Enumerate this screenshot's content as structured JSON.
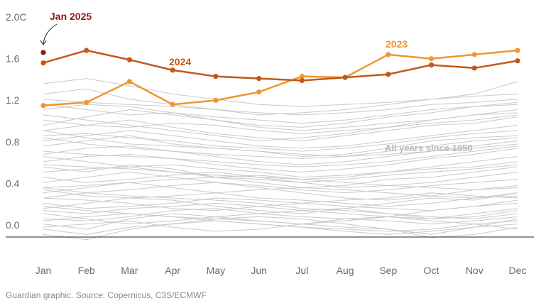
{
  "chart_data": {
    "type": "line",
    "categories": [
      "Jan",
      "Feb",
      "Mar",
      "Apr",
      "May",
      "Jun",
      "Jul",
      "Aug",
      "Sep",
      "Oct",
      "Nov",
      "Dec"
    ],
    "y_ticks": [
      "2.0C",
      "1.6",
      "1.2",
      "0.8",
      "0.4",
      "0.0"
    ],
    "y_tick_values": [
      2.0,
      1.6,
      1.2,
      0.8,
      0.4,
      0.0
    ],
    "ylim": [
      -0.15,
      2.05
    ],
    "grid": false,
    "highlight_series": [
      {
        "name": "2024",
        "color": "#c2571a",
        "values": [
          1.6,
          1.72,
          1.63,
          1.53,
          1.47,
          1.45,
          1.43,
          1.46,
          1.49,
          1.58,
          1.55,
          1.62
        ]
      },
      {
        "name": "2023",
        "color": "#f0962e",
        "values": [
          1.19,
          1.22,
          1.42,
          1.2,
          1.24,
          1.32,
          1.47,
          1.46,
          1.68,
          1.64,
          1.68,
          1.72
        ]
      }
    ],
    "point": {
      "name": "Jan 2025",
      "category": "Jan",
      "value": 1.7,
      "color": "#8b1a1a"
    },
    "background_label": "All years since 1950",
    "background_color": "#c9c9c9",
    "background_series": [
      [
        0.6,
        0.55,
        0.62,
        0.58,
        0.5,
        0.45,
        0.4,
        0.42,
        0.48,
        0.5,
        0.55,
        0.6
      ],
      [
        0.2,
        0.25,
        0.3,
        0.28,
        0.22,
        0.18,
        0.15,
        0.2,
        0.25,
        0.3,
        0.28,
        0.35
      ],
      [
        1.1,
        1.05,
        1.0,
        0.95,
        0.9,
        0.85,
        0.88,
        0.92,
        0.98,
        1.05,
        1.1,
        1.15
      ],
      [
        0.4,
        0.35,
        0.38,
        0.42,
        0.45,
        0.4,
        0.35,
        0.3,
        0.28,
        0.32,
        0.38,
        0.42
      ],
      [
        0.05,
        0.0,
        0.1,
        0.15,
        0.12,
        0.08,
        0.05,
        0.02,
        0.0,
        -0.05,
        0.02,
        0.1
      ],
      [
        0.8,
        0.85,
        0.9,
        0.82,
        0.78,
        0.75,
        0.7,
        0.72,
        0.78,
        0.85,
        0.88,
        0.9
      ],
      [
        1.3,
        1.35,
        1.25,
        1.2,
        1.15,
        1.1,
        1.12,
        1.15,
        1.2,
        1.25,
        1.3,
        1.42
      ],
      [
        0.3,
        0.28,
        0.25,
        0.2,
        0.18,
        0.22,
        0.25,
        0.28,
        0.3,
        0.35,
        0.32,
        0.3
      ],
      [
        0.95,
        1.0,
        1.05,
        0.98,
        0.92,
        0.88,
        0.85,
        0.9,
        0.95,
        1.0,
        1.02,
        1.08
      ],
      [
        0.15,
        0.1,
        0.05,
        0.08,
        0.12,
        0.15,
        0.18,
        0.2,
        0.15,
        0.1,
        0.12,
        0.18
      ],
      [
        0.7,
        0.65,
        0.6,
        0.62,
        0.58,
        0.55,
        0.5,
        0.52,
        0.55,
        0.6,
        0.65,
        0.7
      ],
      [
        1.2,
        1.15,
        1.1,
        1.12,
        1.05,
        1.0,
        0.98,
        1.02,
        1.08,
        1.12,
        1.18,
        1.22
      ],
      [
        0.5,
        0.45,
        0.48,
        0.52,
        0.55,
        0.5,
        0.45,
        0.4,
        0.42,
        0.45,
        0.5,
        0.55
      ],
      [
        0.0,
        -0.05,
        0.02,
        0.05,
        0.08,
        0.05,
        0.02,
        0.0,
        -0.02,
        0.0,
        0.05,
        0.08
      ],
      [
        0.9,
        0.92,
        0.88,
        0.85,
        0.8,
        0.78,
        0.75,
        0.78,
        0.82,
        0.88,
        0.92,
        0.95
      ],
      [
        0.35,
        0.4,
        0.45,
        0.4,
        0.35,
        0.3,
        0.28,
        0.25,
        0.22,
        0.25,
        0.3,
        0.35
      ],
      [
        1.0,
        1.08,
        1.15,
        1.1,
        1.05,
        0.98,
        0.95,
        0.98,
        1.02,
        1.05,
        1.1,
        1.12
      ],
      [
        0.25,
        0.2,
        0.22,
        0.25,
        0.3,
        0.28,
        0.25,
        0.22,
        0.2,
        0.18,
        0.22,
        0.25
      ],
      [
        0.65,
        0.7,
        0.72,
        0.68,
        0.62,
        0.58,
        0.55,
        0.58,
        0.62,
        0.68,
        0.72,
        0.78
      ],
      [
        0.1,
        0.08,
        0.12,
        0.18,
        0.2,
        0.15,
        0.12,
        0.1,
        0.08,
        0.05,
        0.08,
        0.12
      ],
      [
        1.4,
        1.45,
        1.38,
        1.3,
        1.25,
        1.2,
        1.18,
        1.2,
        1.22,
        1.25,
        1.28,
        1.3
      ],
      [
        0.45,
        0.5,
        0.55,
        0.5,
        0.45,
        0.42,
        0.38,
        0.35,
        0.38,
        0.42,
        0.45,
        0.48
      ],
      [
        0.75,
        0.72,
        0.7,
        0.68,
        0.65,
        0.62,
        0.6,
        0.62,
        0.65,
        0.7,
        0.75,
        0.8
      ],
      [
        0.18,
        0.15,
        0.2,
        0.22,
        0.25,
        0.22,
        0.18,
        0.15,
        0.12,
        0.1,
        0.15,
        0.2
      ],
      [
        0.85,
        0.9,
        0.95,
        0.9,
        0.85,
        0.8,
        0.78,
        0.8,
        0.85,
        0.9,
        0.95,
        1.0
      ],
      [
        0.55,
        0.58,
        0.6,
        0.55,
        0.5,
        0.48,
        0.45,
        0.48,
        0.52,
        0.55,
        0.58,
        0.62
      ],
      [
        -0.05,
        -0.1,
        0.0,
        0.05,
        0.1,
        0.12,
        0.1,
        0.05,
        0.0,
        -0.08,
        -0.05,
        0.02
      ],
      [
        1.15,
        1.2,
        1.18,
        1.12,
        1.08,
        1.05,
        1.02,
        1.05,
        1.1,
        1.15,
        1.18,
        1.2
      ],
      [
        0.3,
        0.35,
        0.32,
        0.3,
        0.28,
        0.25,
        0.2,
        0.18,
        0.15,
        0.12,
        0.1,
        0.15
      ],
      [
        0.95,
        0.88,
        0.82,
        0.8,
        0.78,
        0.75,
        0.72,
        0.7,
        0.72,
        0.75,
        0.8,
        0.85
      ],
      [
        0.4,
        0.42,
        0.45,
        0.48,
        0.5,
        0.52,
        0.48,
        0.45,
        0.42,
        0.4,
        0.38,
        0.4
      ],
      [
        0.22,
        0.18,
        0.15,
        0.12,
        0.1,
        0.08,
        0.05,
        0.08,
        0.12,
        0.18,
        0.22,
        0.28
      ],
      [
        1.05,
        1.0,
        0.98,
        1.02,
        1.0,
        0.95,
        0.92,
        0.95,
        0.98,
        1.02,
        1.05,
        1.1
      ],
      [
        0.62,
        0.6,
        0.58,
        0.55,
        0.52,
        0.5,
        0.48,
        0.5,
        0.55,
        0.58,
        0.6,
        0.65
      ],
      [
        0.08,
        0.12,
        0.15,
        0.12,
        0.08,
        0.05,
        0.02,
        -0.02,
        -0.05,
        -0.02,
        0.02,
        0.05
      ],
      [
        0.72,
        0.78,
        0.8,
        0.75,
        0.7,
        0.65,
        0.62,
        0.65,
        0.7,
        0.75,
        0.78,
        0.82
      ],
      [
        1.25,
        1.22,
        1.2,
        1.18,
        1.15,
        1.12,
        1.1,
        1.12,
        1.15,
        1.2,
        1.22,
        1.25
      ],
      [
        0.38,
        0.32,
        0.3,
        0.32,
        0.35,
        0.38,
        0.4,
        0.38,
        0.35,
        0.32,
        0.3,
        0.32
      ],
      [
        0.02,
        0.05,
        0.08,
        0.02,
        -0.02,
        0.0,
        0.05,
        0.1,
        0.12,
        0.08,
        0.05,
        0.0
      ],
      [
        0.88,
        0.82,
        0.78,
        0.75,
        0.72,
        0.7,
        0.68,
        0.7,
        0.75,
        0.8,
        0.85,
        0.88
      ]
    ]
  },
  "labels": {
    "series_2024": "2024",
    "series_2023": "2023",
    "point_jan2025": "Jan 2025",
    "background": "All years since 1950"
  },
  "source": "Guardian graphic. Source: Copernicus, C3S/ECMWF"
}
